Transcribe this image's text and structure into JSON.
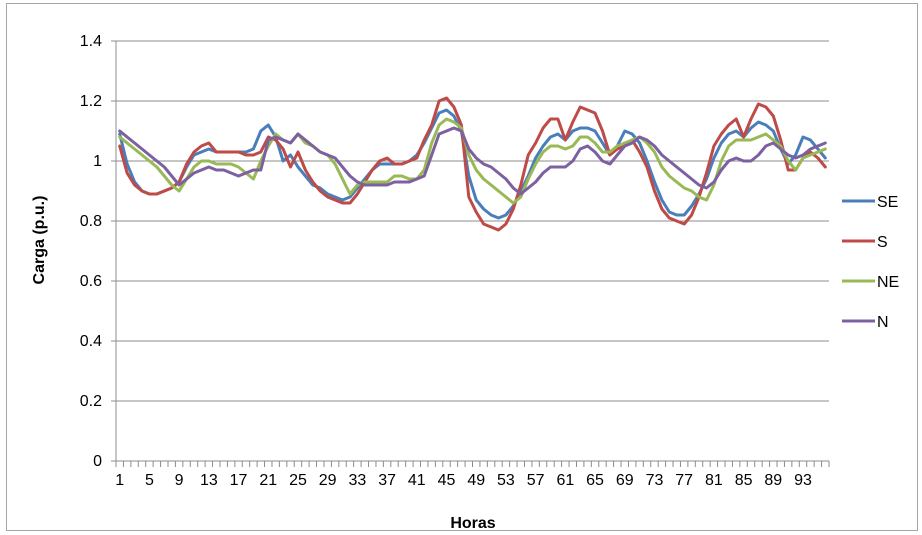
{
  "chart_data": {
    "type": "line",
    "title": "",
    "xlabel": "Horas",
    "ylabel": "Carga (p.u.)",
    "ylim": [
      0,
      1.4
    ],
    "yticks": [
      "0",
      "0.2",
      "0.4",
      "0.6",
      "0.8",
      "1",
      "1.2",
      "1.4"
    ],
    "xlim": [
      1,
      96
    ],
    "xticks": [
      "1",
      "5",
      "9",
      "13",
      "17",
      "21",
      "25",
      "29",
      "33",
      "37",
      "41",
      "45",
      "49",
      "53",
      "57",
      "61",
      "65",
      "69",
      "73",
      "77",
      "81",
      "85",
      "89",
      "93"
    ],
    "grid": true,
    "legend_position": "right",
    "series": [
      {
        "name": "SE",
        "color": "#4a7ebb",
        "values": [
          1.09,
          0.99,
          0.93,
          0.9,
          0.89,
          0.89,
          0.9,
          0.91,
          0.93,
          0.98,
          1.02,
          1.03,
          1.04,
          1.03,
          1.03,
          1.03,
          1.03,
          1.03,
          1.04,
          1.1,
          1.12,
          1.08,
          1.0,
          1.02,
          0.98,
          0.95,
          0.92,
          0.91,
          0.89,
          0.88,
          0.87,
          0.88,
          0.91,
          0.94,
          0.97,
          0.99,
          0.99,
          0.99,
          0.99,
          1.0,
          1.02,
          1.06,
          1.11,
          1.16,
          1.17,
          1.15,
          1.1,
          0.95,
          0.87,
          0.84,
          0.82,
          0.81,
          0.82,
          0.85,
          0.9,
          0.95,
          1.01,
          1.05,
          1.08,
          1.09,
          1.07,
          1.1,
          1.11,
          1.11,
          1.1,
          1.06,
          1.02,
          1.05,
          1.1,
          1.09,
          1.06,
          1.0,
          0.93,
          0.87,
          0.83,
          0.82,
          0.82,
          0.85,
          0.89,
          0.94,
          1.01,
          1.06,
          1.09,
          1.1,
          1.08,
          1.11,
          1.13,
          1.12,
          1.1,
          1.04,
          0.99,
          1.02,
          1.08,
          1.07,
          1.04,
          1.01
        ]
      },
      {
        "name": "S",
        "color": "#be4b48",
        "values": [
          1.05,
          0.96,
          0.92,
          0.9,
          0.89,
          0.89,
          0.9,
          0.91,
          0.93,
          0.99,
          1.03,
          1.05,
          1.06,
          1.03,
          1.03,
          1.03,
          1.03,
          1.02,
          1.02,
          1.03,
          1.08,
          1.07,
          1.04,
          0.98,
          1.03,
          0.97,
          0.93,
          0.9,
          0.88,
          0.87,
          0.86,
          0.86,
          0.89,
          0.93,
          0.97,
          1.0,
          1.01,
          0.99,
          0.99,
          1.0,
          1.01,
          1.07,
          1.12,
          1.2,
          1.21,
          1.18,
          1.12,
          0.88,
          0.83,
          0.79,
          0.78,
          0.77,
          0.79,
          0.84,
          0.92,
          1.02,
          1.06,
          1.11,
          1.14,
          1.14,
          1.07,
          1.13,
          1.18,
          1.17,
          1.16,
          1.1,
          1.02,
          1.04,
          1.05,
          1.07,
          1.03,
          0.98,
          0.9,
          0.84,
          0.81,
          0.8,
          0.79,
          0.82,
          0.88,
          0.96,
          1.05,
          1.09,
          1.12,
          1.14,
          1.08,
          1.14,
          1.19,
          1.18,
          1.15,
          1.07,
          0.97,
          0.97,
          1.01,
          1.03,
          1.01,
          0.98
        ]
      },
      {
        "name": "NE",
        "color": "#98b954",
        "values": [
          1.08,
          1.06,
          1.04,
          1.02,
          1.0,
          0.98,
          0.95,
          0.92,
          0.9,
          0.94,
          0.98,
          1.0,
          1.0,
          0.99,
          0.99,
          0.99,
          0.98,
          0.96,
          0.94,
          1.0,
          1.05,
          1.09,
          1.07,
          1.06,
          1.09,
          1.06,
          1.05,
          1.03,
          1.02,
          0.99,
          0.94,
          0.89,
          0.92,
          0.93,
          0.93,
          0.93,
          0.93,
          0.95,
          0.95,
          0.94,
          0.94,
          0.97,
          1.06,
          1.12,
          1.14,
          1.13,
          1.11,
          1.02,
          0.97,
          0.94,
          0.92,
          0.9,
          0.88,
          0.86,
          0.88,
          0.94,
          0.99,
          1.03,
          1.05,
          1.05,
          1.04,
          1.05,
          1.08,
          1.08,
          1.06,
          1.03,
          1.03,
          1.05,
          1.06,
          1.07,
          1.08,
          1.06,
          1.03,
          0.98,
          0.95,
          0.93,
          0.91,
          0.9,
          0.88,
          0.87,
          0.92,
          1.0,
          1.05,
          1.07,
          1.07,
          1.07,
          1.08,
          1.09,
          1.07,
          1.05,
          1.0,
          0.97,
          1.01,
          1.02,
          1.03,
          1.04
        ]
      },
      {
        "name": "N",
        "color": "#7d60a0",
        "values": [
          1.1,
          1.08,
          1.06,
          1.04,
          1.02,
          1.0,
          0.98,
          0.95,
          0.92,
          0.94,
          0.96,
          0.97,
          0.98,
          0.97,
          0.97,
          0.96,
          0.95,
          0.96,
          0.97,
          0.97,
          1.07,
          1.08,
          1.07,
          1.06,
          1.09,
          1.07,
          1.05,
          1.03,
          1.02,
          1.01,
          0.98,
          0.95,
          0.93,
          0.92,
          0.92,
          0.92,
          0.92,
          0.93,
          0.93,
          0.93,
          0.94,
          0.95,
          1.02,
          1.09,
          1.1,
          1.11,
          1.1,
          1.04,
          1.01,
          0.99,
          0.98,
          0.96,
          0.94,
          0.91,
          0.89,
          0.91,
          0.93,
          0.96,
          0.98,
          0.98,
          0.98,
          1.0,
          1.04,
          1.05,
          1.03,
          1.0,
          0.99,
          1.02,
          1.05,
          1.06,
          1.08,
          1.07,
          1.05,
          1.02,
          1.0,
          0.98,
          0.96,
          0.94,
          0.92,
          0.91,
          0.93,
          0.97,
          1.0,
          1.01,
          1.0,
          1.0,
          1.02,
          1.05,
          1.06,
          1.04,
          1.02,
          1.01,
          1.02,
          1.04,
          1.05,
          1.06
        ]
      }
    ]
  }
}
